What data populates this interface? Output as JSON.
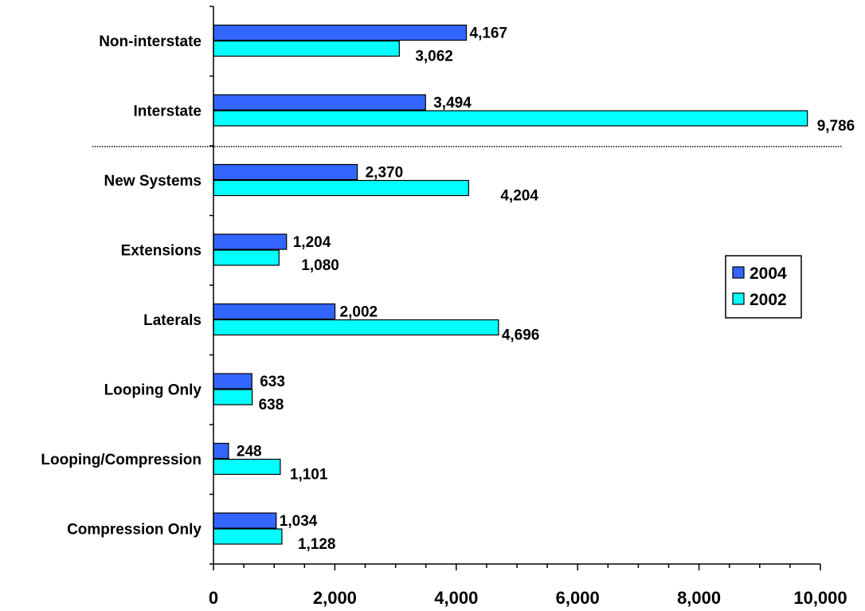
{
  "chart_data": {
    "type": "bar",
    "orientation": "horizontal",
    "categories": [
      "Non-interstate",
      "Interstate",
      "New Systems",
      "Extensions",
      "Laterals",
      "Looping Only",
      "Looping/Compression",
      "Compression Only"
    ],
    "series": [
      {
        "name": "2004",
        "values": [
          4167,
          3494,
          2370,
          1204,
          2002,
          633,
          248,
          1034
        ],
        "labels": [
          "4,167",
          "3,494",
          "2,370",
          "1,204",
          "2,002",
          "633",
          "248",
          "1,034"
        ],
        "color": "#3366ff"
      },
      {
        "name": "2002",
        "values": [
          3062,
          9786,
          4204,
          1080,
          4696,
          638,
          1101,
          1128
        ],
        "labels": [
          "3,062",
          "9,786",
          "4,204",
          "1,080",
          "4,696",
          "638",
          "1,101",
          "1,128"
        ],
        "color": "#00ffff"
      }
    ],
    "xlim": [
      0,
      10000
    ],
    "xticks": [
      0,
      2000,
      4000,
      6000,
      8000,
      10000
    ],
    "xtick_labels": [
      "0",
      "2,000",
      "4,000",
      "6,000",
      "8,000",
      "10,000"
    ],
    "title": "",
    "xlabel": "",
    "ylabel": "",
    "grid": false,
    "legend_position": "right",
    "divider": "dotted line between Interstate and New Systems"
  }
}
